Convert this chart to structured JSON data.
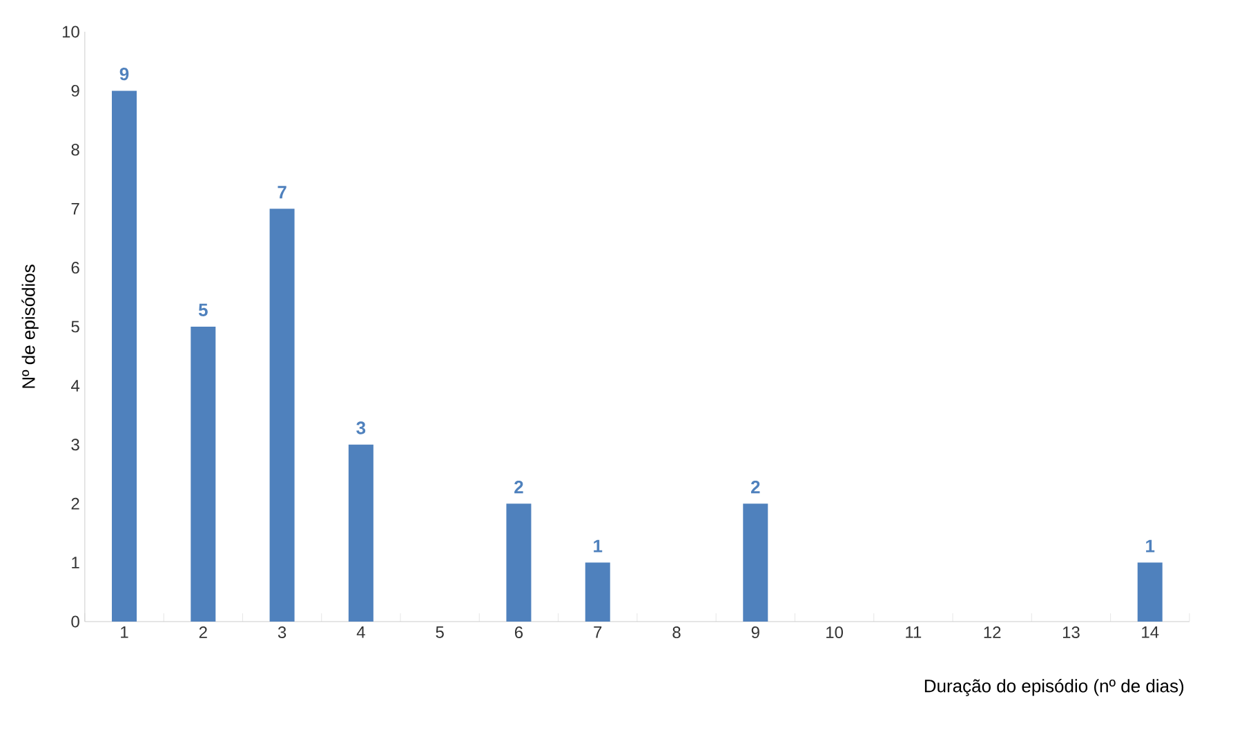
{
  "chart_data": {
    "type": "bar",
    "xlabel": "Duração do episódio (nº de dias)",
    "ylabel": "Nº de episódios",
    "categories": [
      "1",
      "2",
      "3",
      "4",
      "5",
      "6",
      "7",
      "8",
      "9",
      "10",
      "11",
      "12",
      "13",
      "14"
    ],
    "values": [
      9,
      5,
      7,
      3,
      null,
      2,
      1,
      null,
      2,
      null,
      null,
      null,
      null,
      1
    ],
    "color": "#4f81bd",
    "data_labels": true,
    "ylim": [
      0,
      10
    ],
    "yticks": [
      0,
      1,
      2,
      3,
      4,
      5,
      6,
      7,
      8,
      9,
      10
    ]
  }
}
